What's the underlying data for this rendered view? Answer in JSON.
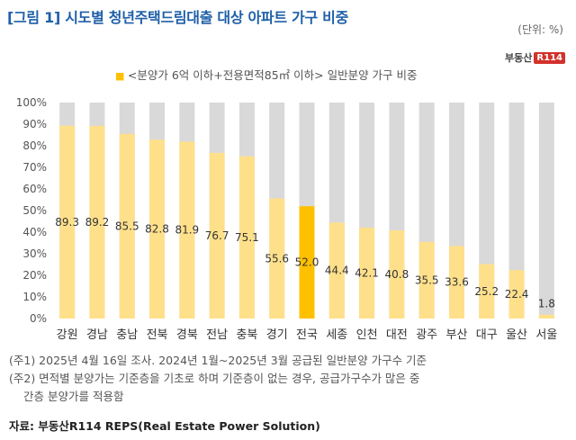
{
  "title": "[그림 1] 시도별 청년주택드림대출 대상 아파트 가구 비중",
  "unit": "(단위: %)",
  "logo": {
    "text": "부동산",
    "badge": "R114"
  },
  "notes": [
    "(주1) 2025년 4월 16일 조사. 2024년 1월~2025년 3월 공급된 일반분양 가구수 기준",
    "(주2) 면적별 분양가는 기준층을 기초로 하며 기준층이 없는 경우, 공급가구수가 많은 중",
    "간층 분양가를 적용함"
  ],
  "source": "자료: 부동산R114 REPS(Real Estate Power Solution)",
  "colors": {
    "bar": "#ffe08a",
    "highlight": "#ffc000",
    "background_bar": "#d9d9d9"
  },
  "chart_data": {
    "type": "bar",
    "legend": "<분양가 6억 이하+전용면적85㎡ 이하> 일반분양 가구 비중",
    "categories": [
      "강원",
      "경남",
      "충남",
      "전북",
      "경북",
      "전남",
      "충북",
      "경기",
      "전국",
      "세종",
      "인천",
      "대전",
      "광주",
      "부산",
      "대구",
      "울산",
      "서울"
    ],
    "values": [
      89.3,
      89.2,
      85.5,
      82.8,
      81.9,
      76.7,
      75.1,
      55.6,
      52.0,
      44.4,
      42.1,
      40.8,
      35.5,
      33.6,
      25.2,
      22.4,
      1.8
    ],
    "value_labels": [
      "89.3",
      "89.2",
      "85.5",
      "82.8",
      "81.9",
      "76.7",
      "75.1",
      "55.6",
      "52.0",
      "44.4",
      "42.1",
      "40.8",
      "35.5",
      "33.6",
      "25.2",
      "22.4",
      "1.8"
    ],
    "highlight_category": "전국",
    "y_ticks": [
      "0%",
      "10%",
      "20%",
      "30%",
      "40%",
      "50%",
      "60%",
      "70%",
      "80%",
      "90%",
      "100%"
    ],
    "ylim": [
      0,
      100
    ],
    "grid": false
  }
}
